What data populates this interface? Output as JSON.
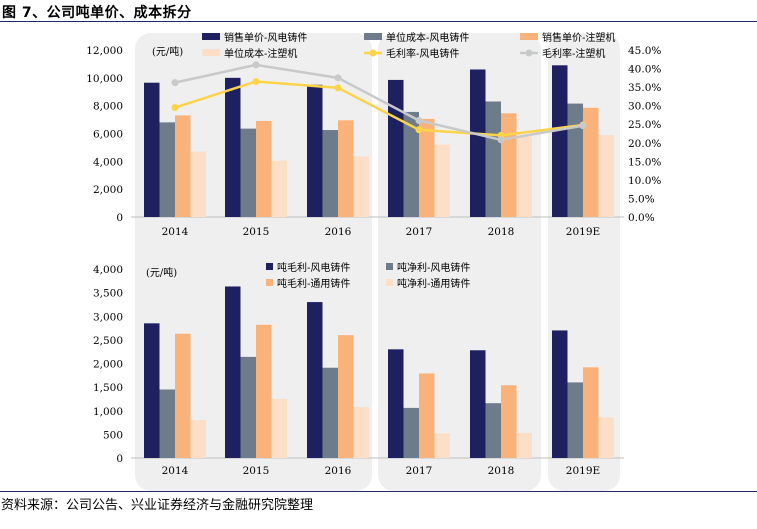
{
  "figure_title": "图 7、公司吨单价、成本拆分",
  "source_note": "资料来源：公司公告、兴业证券经济与金融研究院整理",
  "chart_data": [
    {
      "type": "bar",
      "unit_label": "(元/吨)",
      "categories": [
        "2014",
        "2015",
        "2016",
        "2017",
        "2018",
        "2019E"
      ],
      "ylim": [
        0,
        12000
      ],
      "yticks": [
        "0",
        "2,000",
        "4,000",
        "6,000",
        "8,000",
        "10,000",
        "12,000"
      ],
      "y2lim": [
        0,
        45
      ],
      "y2ticks": [
        "0.0%",
        "5.0%",
        "10.0%",
        "15.0%",
        "20.0%",
        "25.0%",
        "30.0%",
        "35.0%",
        "40.0%",
        "45.0%"
      ],
      "series": [
        {
          "name": "销售单价-风电铸件",
          "type": "bar",
          "color": "#1f2060",
          "values": [
            9650,
            10000,
            9500,
            9850,
            10600,
            10900
          ]
        },
        {
          "name": "单位成本-风电铸件",
          "type": "bar",
          "color": "#6e7b8b",
          "values": [
            6800,
            6350,
            6250,
            7550,
            8300,
            8150
          ]
        },
        {
          "name": "销售单价-注塑机",
          "type": "bar",
          "color": "#f9b27a",
          "values": [
            7300,
            6900,
            6950,
            7050,
            7450,
            7850
          ]
        },
        {
          "name": "单位成本-注塑机",
          "type": "bar",
          "color": "#fcdfc6",
          "values": [
            4700,
            4050,
            4350,
            5200,
            5800,
            5900
          ]
        },
        {
          "name": "毛利率-风电铸件",
          "type": "line",
          "axis": "right",
          "color": "#fcd44a",
          "values": [
            29.5,
            36.5,
            34.8,
            23.5,
            22.0,
            24.8
          ]
        },
        {
          "name": "毛利率-注塑机",
          "type": "line",
          "axis": "right",
          "color": "#c8c9cb",
          "values": [
            36.2,
            41.0,
            37.5,
            26.0,
            20.8,
            24.6
          ]
        }
      ]
    },
    {
      "type": "bar",
      "unit_label": "(元/吨)",
      "categories": [
        "2014",
        "2015",
        "2016",
        "2017",
        "2018",
        "2019E"
      ],
      "ylim": [
        0,
        4000
      ],
      "yticks": [
        "0",
        "500",
        "1,000",
        "1,500",
        "2,000",
        "2,500",
        "3,000",
        "3,500",
        "4,000"
      ],
      "series": [
        {
          "name": "吨毛利-风电铸件",
          "color": "#1f2060",
          "values": [
            2850,
            3630,
            3300,
            2300,
            2280,
            2700
          ]
        },
        {
          "name": "吨净利-风电铸件",
          "color": "#6e7b8b",
          "values": [
            1450,
            2140,
            1910,
            1060,
            1160,
            1600
          ]
        },
        {
          "name": "吨毛利-通用铸件",
          "color": "#f9b27a",
          "values": [
            2630,
            2820,
            2600,
            1790,
            1540,
            1920
          ]
        },
        {
          "name": "吨净利-通用铸件",
          "color": "#fcdfc6",
          "values": [
            800,
            1250,
            1080,
            520,
            530,
            860
          ]
        }
      ]
    }
  ]
}
